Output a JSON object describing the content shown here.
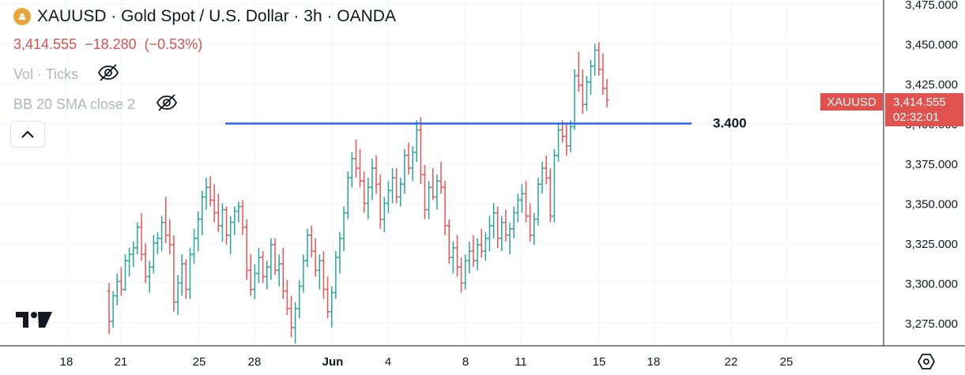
{
  "header": {
    "title": "XAUUSD · Gold Spot / U.S. Dollar · 3h · OANDA",
    "last_price": "3,414.555",
    "change": "−18.280",
    "change_pct": "(−0.53%)",
    "indicator_vol": "Vol · Ticks",
    "indicator_bb": "BB 20 SMA close 2"
  },
  "price_tag": {
    "symbol": "XAUUSD",
    "price": "3,414.555",
    "countdown": "02:32:01"
  },
  "colors": {
    "up": "#26a69a",
    "down": "#ef5350",
    "hline": "#2962ff",
    "tag": "#e0524e",
    "logo": "#e8a53a"
  },
  "icons": [
    "gold-logo-icon",
    "eye-off-icon",
    "chevron-up-icon",
    "tradingview-logo-icon",
    "settings-hexagon-icon"
  ],
  "chart_data": {
    "type": "ohlc",
    "xaxis_ticks": [
      "18",
      "21",
      "25",
      "28",
      "Jun",
      "4",
      "8",
      "11",
      "15",
      "18",
      "22",
      "25"
    ],
    "yaxis_ticks": [
      "3,275.000",
      "3,300.000",
      "3,325.000",
      "3,350.000",
      "3,375.000",
      "3,400.000",
      "3,425.000",
      "3,450.000",
      "3,475.000"
    ],
    "ylim": [
      3264,
      3480
    ],
    "horizontal_line": {
      "value": 3400,
      "label": "3.400"
    },
    "candles": [
      [
        3295,
        3300,
        3268,
        3276
      ],
      [
        3276,
        3295,
        3272,
        3292
      ],
      [
        3292,
        3306,
        3286,
        3301
      ],
      [
        3301,
        3310,
        3292,
        3296
      ],
      [
        3296,
        3318,
        3295,
        3314
      ],
      [
        3314,
        3322,
        3304,
        3318
      ],
      [
        3318,
        3326,
        3310,
        3322
      ],
      [
        3322,
        3338,
        3318,
        3335
      ],
      [
        3335,
        3344,
        3314,
        3318
      ],
      [
        3318,
        3325,
        3300,
        3304
      ],
      [
        3304,
        3314,
        3294,
        3310
      ],
      [
        3310,
        3330,
        3306,
        3325
      ],
      [
        3325,
        3332,
        3318,
        3328
      ],
      [
        3328,
        3342,
        3320,
        3338
      ],
      [
        3338,
        3354,
        3325,
        3330
      ],
      [
        3330,
        3340,
        3318,
        3324
      ],
      [
        3324,
        3330,
        3282,
        3288
      ],
      [
        3288,
        3305,
        3280,
        3300
      ],
      [
        3300,
        3318,
        3292,
        3312
      ],
      [
        3312,
        3315,
        3290,
        3296
      ],
      [
        3296,
        3322,
        3290,
        3318
      ],
      [
        3318,
        3334,
        3312,
        3328
      ],
      [
        3328,
        3345,
        3320,
        3340
      ],
      [
        3340,
        3358,
        3330,
        3354
      ],
      [
        3354,
        3366,
        3346,
        3360
      ],
      [
        3360,
        3367,
        3348,
        3352
      ],
      [
        3352,
        3362,
        3338,
        3344
      ],
      [
        3344,
        3356,
        3332,
        3336
      ],
      [
        3336,
        3350,
        3326,
        3346
      ],
      [
        3346,
        3348,
        3324,
        3330
      ],
      [
        3330,
        3342,
        3318,
        3338
      ],
      [
        3338,
        3348,
        3330,
        3345
      ],
      [
        3345,
        3351,
        3338,
        3348
      ],
      [
        3348,
        3352,
        3330,
        3335
      ],
      [
        3335,
        3340,
        3302,
        3308
      ],
      [
        3308,
        3318,
        3292,
        3296
      ],
      [
        3296,
        3312,
        3290,
        3306
      ],
      [
        3306,
        3322,
        3300,
        3316
      ],
      [
        3316,
        3320,
        3300,
        3304
      ],
      [
        3304,
        3314,
        3296,
        3310
      ],
      [
        3310,
        3328,
        3302,
        3324
      ],
      [
        3324,
        3328,
        3305,
        3308
      ],
      [
        3308,
        3318,
        3298,
        3312
      ],
      [
        3312,
        3322,
        3290,
        3295
      ],
      [
        3295,
        3302,
        3280,
        3284
      ],
      [
        3284,
        3292,
        3266,
        3272
      ],
      [
        3272,
        3288,
        3262,
        3284
      ],
      [
        3284,
        3302,
        3278,
        3298
      ],
      [
        3298,
        3318,
        3294,
        3314
      ],
      [
        3314,
        3334,
        3310,
        3330
      ],
      [
        3330,
        3336,
        3316,
        3320
      ],
      [
        3320,
        3328,
        3304,
        3308
      ],
      [
        3308,
        3318,
        3296,
        3314
      ],
      [
        3314,
        3320,
        3290,
        3296
      ],
      [
        3296,
        3304,
        3278,
        3282
      ],
      [
        3282,
        3298,
        3272,
        3294
      ],
      [
        3294,
        3320,
        3290,
        3316
      ],
      [
        3316,
        3332,
        3306,
        3328
      ],
      [
        3328,
        3348,
        3320,
        3344
      ],
      [
        3344,
        3370,
        3340,
        3366
      ],
      [
        3366,
        3382,
        3360,
        3378
      ],
      [
        3378,
        3390,
        3366,
        3372
      ],
      [
        3372,
        3384,
        3360,
        3364
      ],
      [
        3364,
        3370,
        3344,
        3350
      ],
      [
        3350,
        3366,
        3340,
        3360
      ],
      [
        3360,
        3378,
        3352,
        3372
      ],
      [
        3372,
        3380,
        3356,
        3362
      ],
      [
        3362,
        3368,
        3334,
        3340
      ],
      [
        3340,
        3354,
        3332,
        3350
      ],
      [
        3350,
        3364,
        3344,
        3358
      ],
      [
        3358,
        3372,
        3350,
        3366
      ],
      [
        3366,
        3372,
        3350,
        3354
      ],
      [
        3354,
        3366,
        3348,
        3362
      ],
      [
        3362,
        3384,
        3356,
        3380
      ],
      [
        3380,
        3388,
        3368,
        3372
      ],
      [
        3372,
        3386,
        3364,
        3382
      ],
      [
        3382,
        3402,
        3376,
        3396
      ],
      [
        3396,
        3404,
        3362,
        3368
      ],
      [
        3368,
        3374,
        3340,
        3346
      ],
      [
        3346,
        3364,
        3340,
        3360
      ],
      [
        3360,
        3372,
        3352,
        3354
      ],
      [
        3354,
        3368,
        3346,
        3364
      ],
      [
        3364,
        3376,
        3356,
        3360
      ],
      [
        3360,
        3364,
        3330,
        3336
      ],
      [
        3336,
        3340,
        3312,
        3316
      ],
      [
        3316,
        3326,
        3306,
        3322
      ],
      [
        3322,
        3330,
        3304,
        3310
      ],
      [
        3310,
        3316,
        3294,
        3300
      ],
      [
        3300,
        3318,
        3296,
        3314
      ],
      [
        3314,
        3326,
        3306,
        3320
      ],
      [
        3320,
        3330,
        3310,
        3314
      ],
      [
        3314,
        3328,
        3308,
        3324
      ],
      [
        3324,
        3334,
        3316,
        3320
      ],
      [
        3320,
        3332,
        3314,
        3328
      ],
      [
        3328,
        3342,
        3320,
        3336
      ],
      [
        3336,
        3350,
        3328,
        3344
      ],
      [
        3344,
        3348,
        3322,
        3328
      ],
      [
        3328,
        3342,
        3320,
        3338
      ],
      [
        3338,
        3346,
        3326,
        3330
      ],
      [
        3330,
        3338,
        3318,
        3334
      ],
      [
        3334,
        3348,
        3328,
        3344
      ],
      [
        3344,
        3356,
        3338,
        3352
      ],
      [
        3352,
        3362,
        3344,
        3356
      ],
      [
        3356,
        3364,
        3338,
        3342
      ],
      [
        3342,
        3350,
        3326,
        3330
      ],
      [
        3330,
        3344,
        3324,
        3340
      ],
      [
        3340,
        3366,
        3336,
        3362
      ],
      [
        3362,
        3376,
        3356,
        3372
      ],
      [
        3372,
        3380,
        3362,
        3366
      ],
      [
        3366,
        3372,
        3338,
        3342
      ],
      [
        3342,
        3384,
        3338,
        3380
      ],
      [
        3380,
        3400,
        3376,
        3396
      ],
      [
        3396,
        3402,
        3388,
        3392
      ],
      [
        3392,
        3400,
        3380,
        3386
      ],
      [
        3386,
        3402,
        3382,
        3398
      ],
      [
        3398,
        3434,
        3396,
        3430
      ],
      [
        3430,
        3445,
        3420,
        3424
      ],
      [
        3424,
        3434,
        3406,
        3412
      ],
      [
        3412,
        3430,
        3408,
        3426
      ],
      [
        3426,
        3440,
        3418,
        3436
      ],
      [
        3436,
        3450,
        3430,
        3446
      ],
      [
        3446,
        3451,
        3430,
        3434
      ],
      [
        3434,
        3444,
        3418,
        3422
      ],
      [
        3422,
        3428,
        3410,
        3414.555
      ]
    ]
  }
}
